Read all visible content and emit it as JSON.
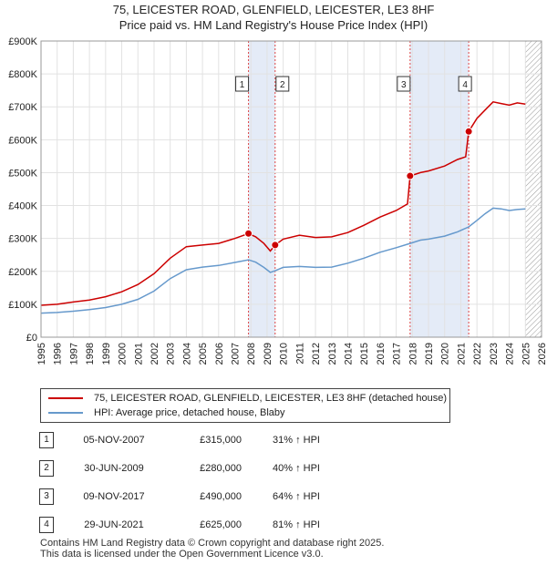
{
  "title": {
    "line1": "75, LEICESTER ROAD, GLENFIELD, LEICESTER, LE3 8HF",
    "line2": "Price paid vs. HM Land Registry's House Price Index (HPI)"
  },
  "chart_data": {
    "type": "line",
    "xlim": [
      1995,
      2026
    ],
    "ylim": [
      0,
      900000
    ],
    "y_ticks": [
      {
        "value": 0,
        "label": "£0"
      },
      {
        "value": 100000,
        "label": "£100K"
      },
      {
        "value": 200000,
        "label": "£200K"
      },
      {
        "value": 300000,
        "label": "£300K"
      },
      {
        "value": 400000,
        "label": "£400K"
      },
      {
        "value": 500000,
        "label": "£500K"
      },
      {
        "value": 600000,
        "label": "£600K"
      },
      {
        "value": 700000,
        "label": "£700K"
      },
      {
        "value": 800000,
        "label": "£800K"
      },
      {
        "value": 900000,
        "label": "£900K"
      }
    ],
    "x_ticks": [
      "1995",
      "1996",
      "1997",
      "1998",
      "1999",
      "2000",
      "2001",
      "2002",
      "2003",
      "2004",
      "2005",
      "2006",
      "2007",
      "2008",
      "2009",
      "2010",
      "2011",
      "2012",
      "2013",
      "2014",
      "2015",
      "2016",
      "2017",
      "2018",
      "2019",
      "2020",
      "2021",
      "2022",
      "2023",
      "2024",
      "2025",
      "2026"
    ],
    "grid": true,
    "shaded_periods": [
      [
        2007.85,
        2009.5
      ],
      [
        2017.86,
        2021.49
      ]
    ],
    "hatched_from": 2025.0,
    "series": [
      {
        "name": "75, LEICESTER ROAD, GLENFIELD, LEICESTER, LE3 8HF (detached house)",
        "color": "#cc0000",
        "points": [
          [
            1995.0,
            97000
          ],
          [
            1996.0,
            100000
          ],
          [
            1997.0,
            107000
          ],
          [
            1998.0,
            113000
          ],
          [
            1999.0,
            123000
          ],
          [
            2000.0,
            138000
          ],
          [
            2001.0,
            160000
          ],
          [
            2002.0,
            193000
          ],
          [
            2003.0,
            240000
          ],
          [
            2004.0,
            275000
          ],
          [
            2005.0,
            280000
          ],
          [
            2006.0,
            285000
          ],
          [
            2007.0,
            300000
          ],
          [
            2007.85,
            315000
          ],
          [
            2008.3,
            305000
          ],
          [
            2008.8,
            285000
          ],
          [
            2009.2,
            262000
          ],
          [
            2009.5,
            280000
          ],
          [
            2010.0,
            298000
          ],
          [
            2011.0,
            310000
          ],
          [
            2012.0,
            303000
          ],
          [
            2013.0,
            305000
          ],
          [
            2014.0,
            318000
          ],
          [
            2015.0,
            340000
          ],
          [
            2016.0,
            365000
          ],
          [
            2017.0,
            385000
          ],
          [
            2017.7,
            405000
          ],
          [
            2017.86,
            490000
          ],
          [
            2018.5,
            500000
          ],
          [
            2019.0,
            505000
          ],
          [
            2020.0,
            520000
          ],
          [
            2020.8,
            540000
          ],
          [
            2021.3,
            548000
          ],
          [
            2021.49,
            625000
          ],
          [
            2022.0,
            665000
          ],
          [
            2022.5,
            690000
          ],
          [
            2023.0,
            715000
          ],
          [
            2023.5,
            710000
          ],
          [
            2024.0,
            705000
          ],
          [
            2024.5,
            712000
          ],
          [
            2025.0,
            708000
          ]
        ]
      },
      {
        "name": "HPI: Average price, detached house, Blaby",
        "color": "#6699cc",
        "points": [
          [
            1995.0,
            73000
          ],
          [
            1996.0,
            75000
          ],
          [
            1997.0,
            79000
          ],
          [
            1998.0,
            84000
          ],
          [
            1999.0,
            90000
          ],
          [
            2000.0,
            100000
          ],
          [
            2001.0,
            115000
          ],
          [
            2002.0,
            140000
          ],
          [
            2003.0,
            178000
          ],
          [
            2004.0,
            205000
          ],
          [
            2005.0,
            213000
          ],
          [
            2006.0,
            218000
          ],
          [
            2007.0,
            227000
          ],
          [
            2007.85,
            235000
          ],
          [
            2008.3,
            228000
          ],
          [
            2008.8,
            212000
          ],
          [
            2009.2,
            197000
          ],
          [
            2009.5,
            202000
          ],
          [
            2010.0,
            212000
          ],
          [
            2011.0,
            215000
          ],
          [
            2012.0,
            212000
          ],
          [
            2013.0,
            213000
          ],
          [
            2014.0,
            225000
          ],
          [
            2015.0,
            240000
          ],
          [
            2016.0,
            258000
          ],
          [
            2017.0,
            272000
          ],
          [
            2017.86,
            285000
          ],
          [
            2018.5,
            295000
          ],
          [
            2019.0,
            298000
          ],
          [
            2020.0,
            307000
          ],
          [
            2020.8,
            320000
          ],
          [
            2021.49,
            335000
          ],
          [
            2022.0,
            355000
          ],
          [
            2022.5,
            375000
          ],
          [
            2023.0,
            392000
          ],
          [
            2023.5,
            390000
          ],
          [
            2024.0,
            385000
          ],
          [
            2024.5,
            388000
          ],
          [
            2025.0,
            390000
          ]
        ]
      }
    ],
    "sales": [
      {
        "n": "1",
        "x": 2007.85,
        "y": 315000
      },
      {
        "n": "2",
        "x": 2009.5,
        "y": 280000
      },
      {
        "n": "3",
        "x": 2017.86,
        "y": 490000
      },
      {
        "n": "4",
        "x": 2021.49,
        "y": 625000
      }
    ]
  },
  "legend": {
    "property": "75, LEICESTER ROAD, GLENFIELD, LEICESTER, LE3 8HF (detached house)",
    "hpi": "HPI: Average price, detached house, Blaby",
    "property_color": "#cc0000",
    "hpi_color": "#6699cc"
  },
  "sales_table": [
    {
      "n": "1",
      "date": "05-NOV-2007",
      "price": "£315,000",
      "hpi": "31% ↑ HPI"
    },
    {
      "n": "2",
      "date": "30-JUN-2009",
      "price": "£280,000",
      "hpi": "40% ↑ HPI"
    },
    {
      "n": "3",
      "date": "09-NOV-2017",
      "price": "£490,000",
      "hpi": "64% ↑ HPI"
    },
    {
      "n": "4",
      "date": "29-JUN-2021",
      "price": "£625,000",
      "hpi": "81% ↑ HPI"
    }
  ],
  "footer": {
    "line1": "Contains HM Land Registry data © Crown copyright and database right 2025.",
    "line2": "This data is licensed under the Open Government Licence v3.0."
  }
}
